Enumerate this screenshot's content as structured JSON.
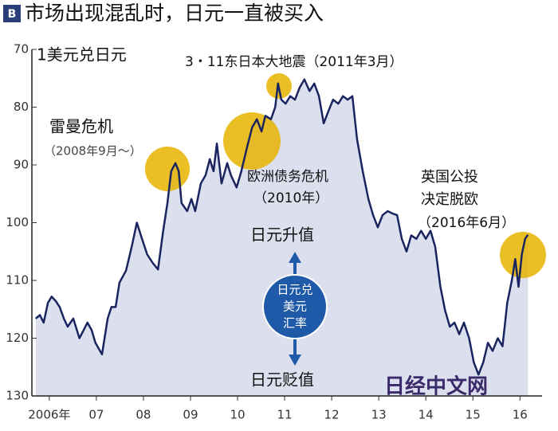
{
  "chart_data": {
    "type": "area",
    "title": "市场出现混乱时，日元一直被买入",
    "badge": "B",
    "y_axis_label": "1美元兑日元",
    "annotations": {
      "lehman": [
        "雷曼危机",
        "（2008年9月～）"
      ],
      "quake": "3・11东日本大地震（2011年3月）",
      "euro": [
        "欧洲债务危机",
        "（2010年）"
      ],
      "brexit": [
        "英国公投",
        "决定脱欧",
        "（2016年6月）"
      ],
      "up": "日元升值",
      "down": "日元贬值",
      "center": [
        "日元兑",
        "美元",
        "汇率"
      ],
      "watermark": "日经中文网"
    },
    "y_inverted": true,
    "ylim": [
      70,
      130
    ],
    "yticks": [
      70,
      80,
      90,
      100,
      110,
      120,
      130
    ],
    "xlim": [
      2006.13,
      2016.97
    ],
    "xticks": [
      {
        "value": 2006.5,
        "label": "2006年"
      },
      {
        "value": 2007.5,
        "label": "07"
      },
      {
        "value": 2008.5,
        "label": "08"
      },
      {
        "value": 2009.5,
        "label": "09"
      },
      {
        "value": 2010.5,
        "label": "10"
      },
      {
        "value": 2011.5,
        "label": "11"
      },
      {
        "value": 2012.5,
        "label": "12"
      },
      {
        "value": 2013.5,
        "label": "13"
      },
      {
        "value": 2014.5,
        "label": "14"
      },
      {
        "value": 2015.5,
        "label": "15"
      },
      {
        "value": 2016.5,
        "label": "16"
      }
    ],
    "line_color": "#1a2560",
    "fill_color": "#dcdfee",
    "x": [
      2006.21,
      2006.3,
      2006.38,
      2006.47,
      2006.55,
      2006.64,
      2006.72,
      2006.81,
      2006.89,
      2007.01,
      2007.14,
      2007.23,
      2007.31,
      2007.4,
      2007.48,
      2007.62,
      2007.74,
      2007.82,
      2007.91,
      2007.99,
      2008.13,
      2008.25,
      2008.36,
      2008.47,
      2008.58,
      2008.7,
      2008.81,
      2008.92,
      2009.01,
      2009.09,
      2009.18,
      2009.25,
      2009.31,
      2009.43,
      2009.52,
      2009.6,
      2009.72,
      2009.82,
      2009.91,
      2009.99,
      2010.06,
      2010.16,
      2010.28,
      2010.36,
      2010.48,
      2010.58,
      2010.7,
      2010.81,
      2010.91,
      2011.01,
      2011.09,
      2011.21,
      2011.3,
      2011.36,
      2011.43,
      2011.52,
      2011.62,
      2011.72,
      2011.82,
      2011.92,
      2012.03,
      2012.13,
      2012.23,
      2012.33,
      2012.43,
      2012.53,
      2012.64,
      2012.74,
      2012.84,
      2012.94,
      2013.04,
      2013.16,
      2013.28,
      2013.38,
      2013.48,
      2013.58,
      2013.69,
      2013.79,
      2013.89,
      2013.99,
      2014.09,
      2014.19,
      2014.3,
      2014.4,
      2014.5,
      2014.6,
      2014.7,
      2014.81,
      2014.91,
      2015.01,
      2015.11,
      2015.21,
      2015.31,
      2015.42,
      2015.52,
      2015.62,
      2015.72,
      2015.82,
      2015.92,
      2016.03,
      2016.13,
      2016.23,
      2016.33,
      2016.4,
      2016.47,
      2016.54,
      2016.61,
      2016.67
    ],
    "values": [
      116.6,
      116,
      117.3,
      113.9,
      112.8,
      113.6,
      114.6,
      116.6,
      118,
      116.6,
      120,
      118.6,
      117.3,
      118.6,
      120.8,
      122.8,
      116.6,
      114.6,
      114.6,
      110.4,
      108.3,
      104.2,
      100,
      102.8,
      105.5,
      107,
      108.1,
      101.4,
      96.6,
      91.1,
      89.7,
      91.1,
      96.6,
      98,
      95.9,
      98,
      93.2,
      91.8,
      89,
      91.1,
      86.3,
      93.2,
      89.7,
      91.8,
      93.9,
      91.1,
      87,
      83.5,
      82.1,
      84.2,
      81.5,
      82.1,
      80,
      75.9,
      78.7,
      79.4,
      78.1,
      78.7,
      76.6,
      75.2,
      77.2,
      75.9,
      78.1,
      82.8,
      80.7,
      78.7,
      79.4,
      78.1,
      78.7,
      78.1,
      85.6,
      91.1,
      95.9,
      98.7,
      100.8,
      98.7,
      98,
      98.4,
      98.7,
      102.8,
      105,
      102.2,
      102.8,
      101.4,
      102.8,
      101.4,
      104.2,
      111.1,
      115.2,
      118,
      117.3,
      119.3,
      117.3,
      120,
      124.2,
      126.3,
      124.2,
      120.8,
      122.2,
      120,
      121.4,
      113.9,
      109.9,
      106.3,
      111.1,
      105.5,
      102.8,
      102.1
    ]
  }
}
